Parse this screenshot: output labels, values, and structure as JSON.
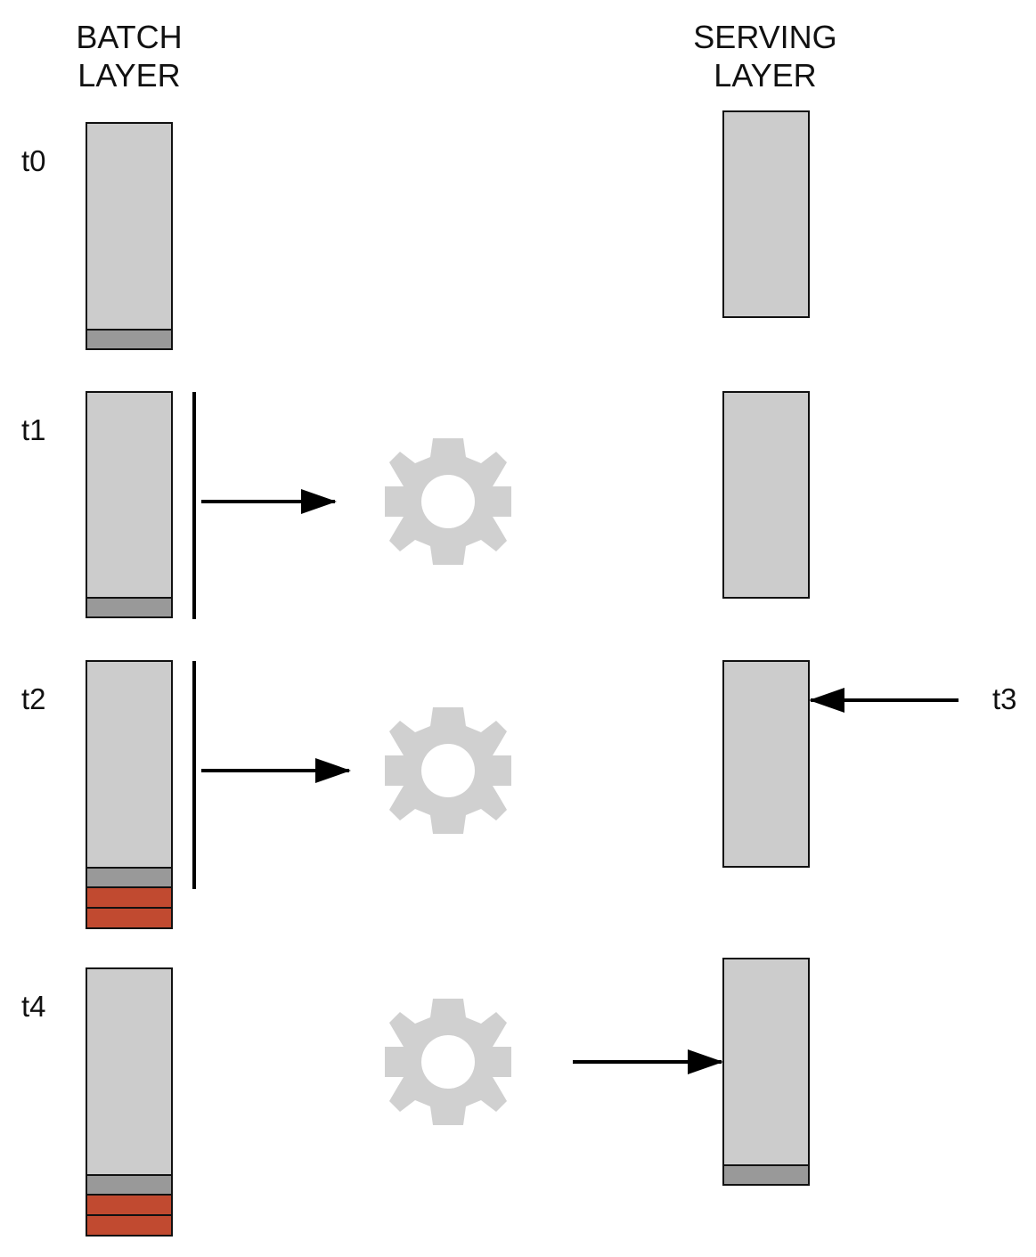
{
  "headers": {
    "batch_line1": "BATCH",
    "batch_line2": "LAYER",
    "serving_line1": "SERVING",
    "serving_line2": "LAYER"
  },
  "time_labels": {
    "t0": "t0",
    "t1": "t1",
    "t2": "t2",
    "t3": "t3",
    "t4": "t4"
  },
  "colors": {
    "store_fill": "#cccccc",
    "existing_data": "#999999",
    "new_data": "#c14a30",
    "gear": "#d0d0d0",
    "outline": "#111111"
  },
  "icons": {
    "compute": "gear-icon"
  }
}
